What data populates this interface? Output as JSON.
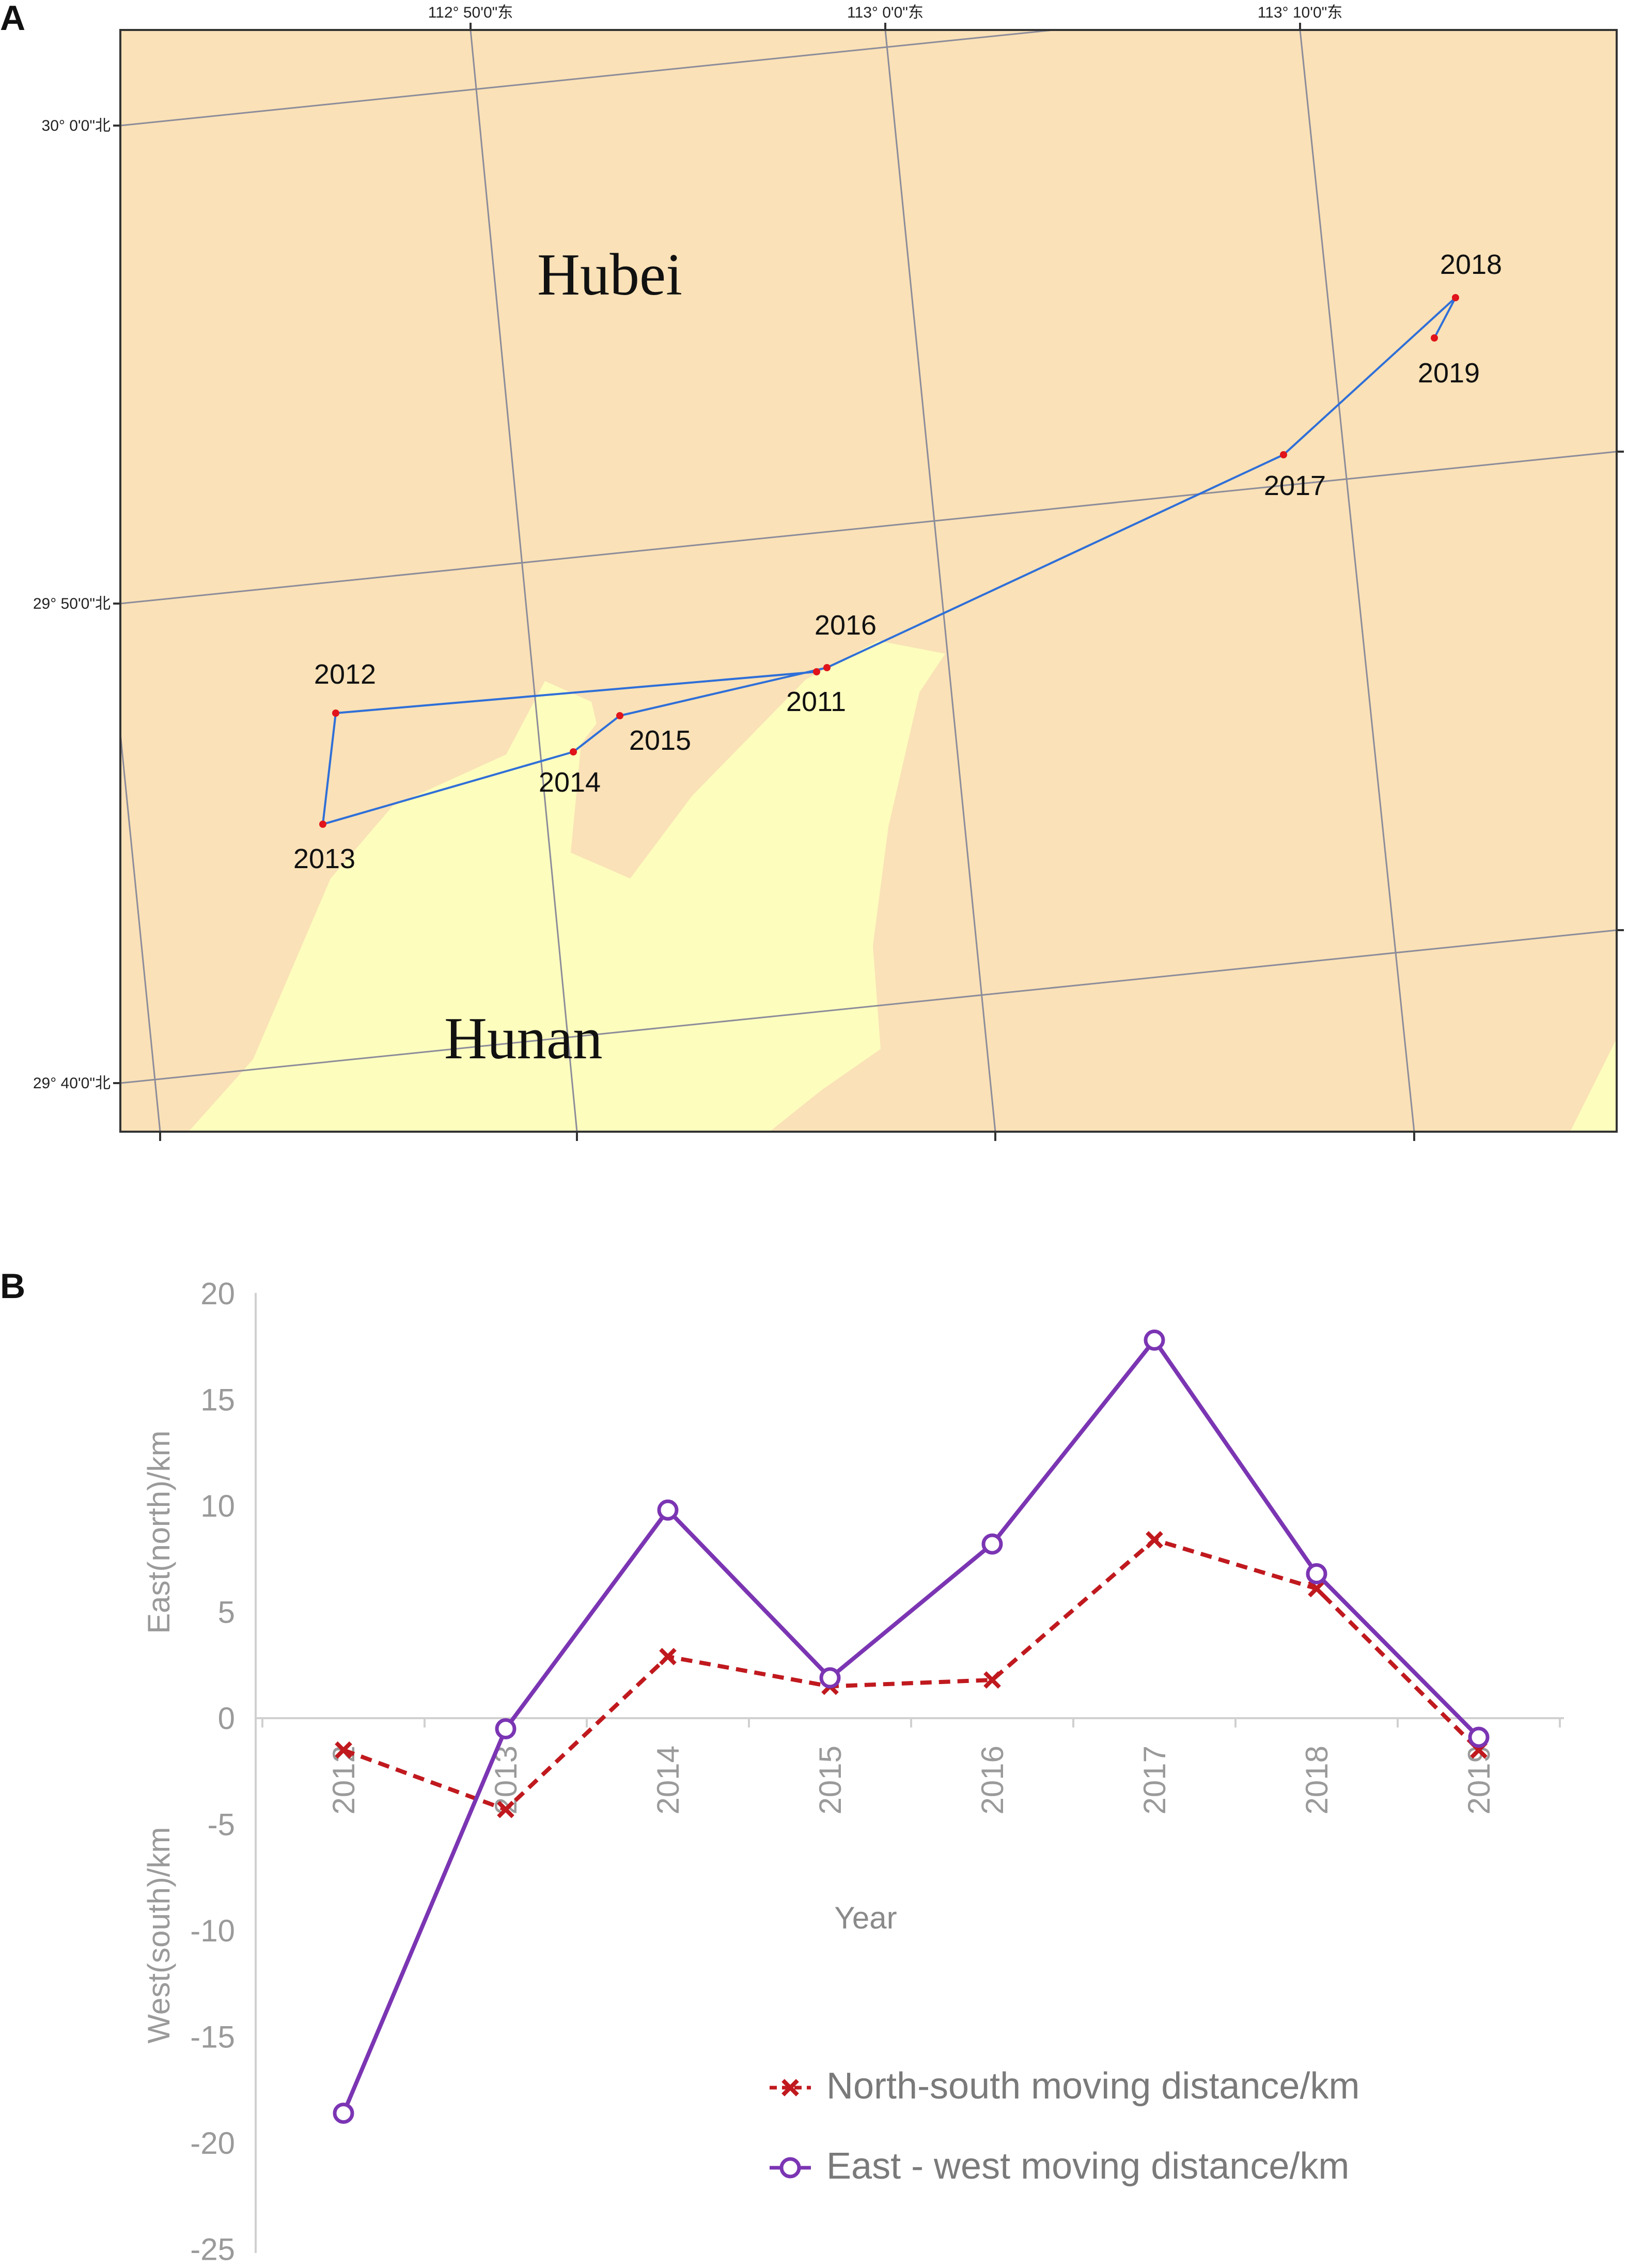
{
  "panels": {
    "a": {
      "label": "A"
    },
    "b": {
      "label": "B"
    }
  },
  "map": {
    "regions": {
      "north": "Hubei",
      "south": "Hunan"
    },
    "colors": {
      "hubei": "#FAE1B7",
      "hunan": "#FDFDBE",
      "graticule": "#8C8C9A",
      "track": "#2F6FD8",
      "point": "#E0141A"
    },
    "lon_labels": [
      "112° 50'0\"东",
      "113° 0'0\"东",
      "113° 10'0\"东"
    ],
    "lat_labels": [
      "30° 0'0\"北",
      "29° 50'0\"北",
      "29° 40'0\"北"
    ],
    "track_order": [
      "2011",
      "2012",
      "2013",
      "2014",
      "2015",
      "2016",
      "2017",
      "2018",
      "2019"
    ],
    "points": {
      "2011": {
        "label": "2011"
      },
      "2012": {
        "label": "2012"
      },
      "2013": {
        "label": "2013"
      },
      "2014": {
        "label": "2014"
      },
      "2015": {
        "label": "2015"
      },
      "2016": {
        "label": "2016"
      },
      "2017": {
        "label": "2017"
      },
      "2018": {
        "label": "2018"
      },
      "2019": {
        "label": "2019"
      }
    }
  },
  "chart_data": {
    "type": "line",
    "xlabel": "Year",
    "ylabel_upper": "East(north)/km",
    "ylabel_lower": "West(south)/km",
    "categories": [
      "2012",
      "2013",
      "2014",
      "2015",
      "2016",
      "2017",
      "2018",
      "2019"
    ],
    "ylim": [
      -25,
      20
    ],
    "yticks": [
      20,
      15,
      10,
      5,
      0,
      -5,
      -10,
      -15,
      -20,
      -25
    ],
    "grid": false,
    "legend_position": "bottom-right",
    "series": [
      {
        "name": "North-south moving distance/km",
        "values": [
          -1.5,
          -4.3,
          2.9,
          1.5,
          1.8,
          8.4,
          6.1,
          -1.5
        ],
        "color": "#C0191E",
        "marker": "x",
        "dashed": true
      },
      {
        "name": "East - west moving distance/km",
        "values": [
          -18.6,
          -0.5,
          9.8,
          1.9,
          8.2,
          17.8,
          6.8,
          -0.9
        ],
        "color": "#7B35B3",
        "marker": "o",
        "dashed": false
      }
    ]
  }
}
